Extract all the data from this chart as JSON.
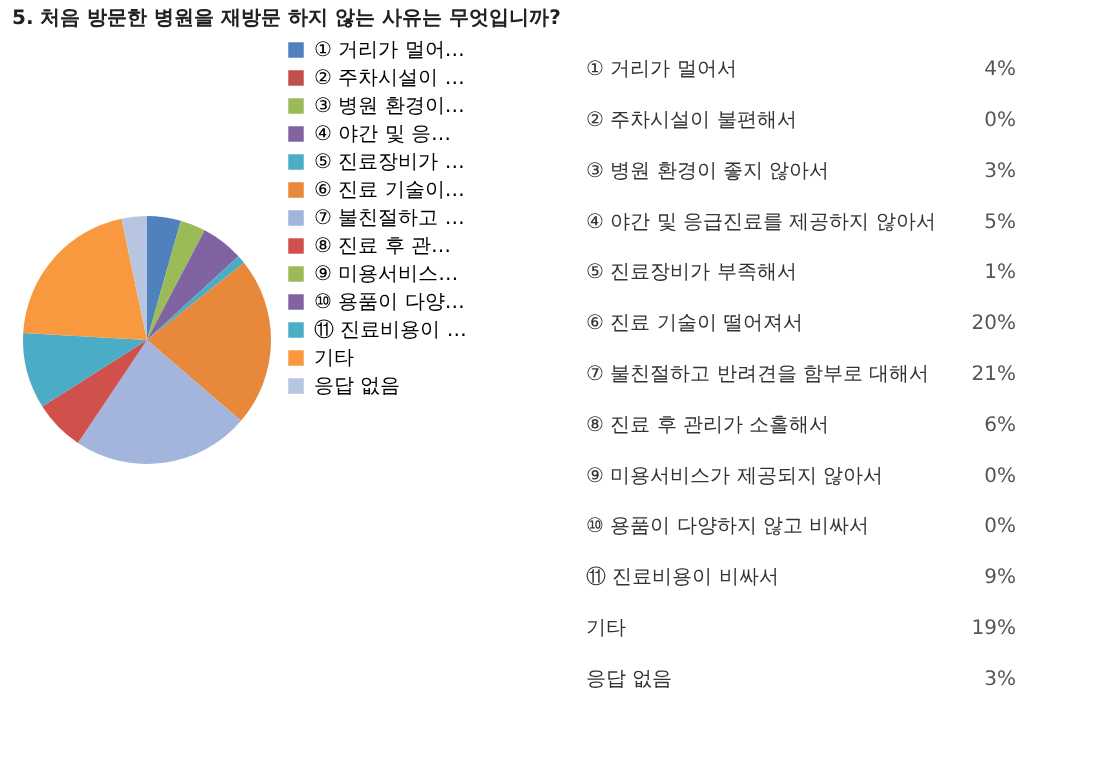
{
  "chart_data": [
    {
      "type": "pie",
      "title": "5. 처음 방문한 병원을 재방문 하지 않는 사유는 무엇입니까?",
      "categories": [
        "① 거리가 멀어…",
        "② 주차시설이 …",
        "③ 병원 환경이…",
        "④ 야간 및 응…",
        "⑤ 진료장비가 …",
        "⑥ 진료 기술이…",
        "⑦ 불친절하고 …",
        "⑧ 진료 후 관…",
        "⑨ 미용서비스…",
        "⑩ 용품이 다양…",
        "⑪ 진료비용이 …",
        "기타",
        "응답 없음"
      ],
      "values": [
        4.4,
        0,
        3.3,
        5.5,
        1.1,
        22,
        23.1,
        6.6,
        0,
        0,
        9.9,
        20.8,
        3.3
      ],
      "colors": [
        "#4f81bd",
        "#c0504d",
        "#9bbb59",
        "#8064a2",
        "#4bacc6",
        "#e8883a",
        "#a3b4dd",
        "#d0504c",
        "#9bbb59",
        "#8064a2",
        "#4bacc6",
        "#f8993f",
        "#b7c5e1"
      ],
      "legend": "right"
    },
    {
      "type": "other",
      "categories": [
        "① 거리가 멀어서",
        "② 주차시설이 불편해서",
        "③ 병원 환경이 좋지 않아서",
        "④ 야간 및 응급진료를 제공하지 않아서",
        "⑤ 진료장비가 부족해서",
        "⑥ 진료 기술이 떨어져서",
        "⑦ 불친절하고 반려견을 함부로 대해서",
        "⑧ 진료 후 관리가 소홀해서",
        "⑨ 미용서비스가 제공되지 않아서",
        "⑩ 용품이 다양하지 않고 비싸서",
        "⑪ 진료비용이 비싸서",
        "기타",
        "응답 없음"
      ],
      "values": [
        4,
        0,
        3,
        5,
        1,
        20,
        21,
        6,
        0,
        0,
        9,
        19,
        3
      ],
      "value_labels": [
        "4%",
        "0%",
        "3%",
        "5%",
        "1%",
        "20%",
        "21%",
        "6%",
        "0%",
        "0%",
        "9%",
        "19%",
        "3%"
      ]
    }
  ]
}
